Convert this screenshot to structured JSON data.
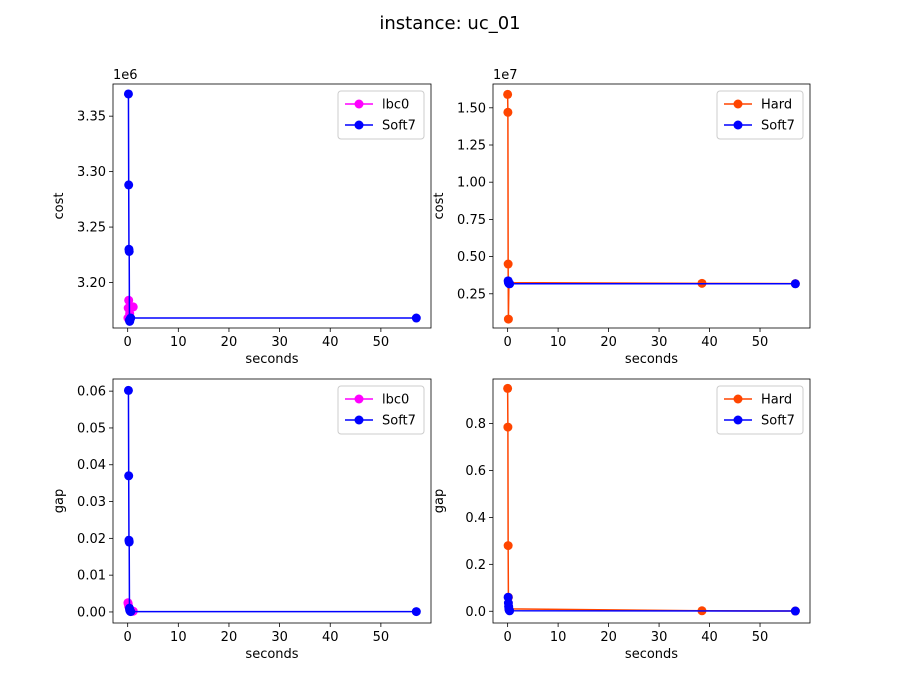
{
  "suptitle": "instance: uc_01",
  "chart_data": [
    {
      "type": "line",
      "xlabel": "seconds",
      "ylabel": "cost",
      "offset_text": "1e6",
      "xlim": [
        -2.9,
        59.9
      ],
      "ylim": [
        3.159,
        3.379
      ],
      "x_ticks": [
        0,
        10,
        20,
        30,
        40,
        50
      ],
      "y_ticks": [
        3.2,
        3.25,
        3.3,
        3.35
      ],
      "y_tick_labels": [
        "3.20",
        "3.25",
        "3.30",
        "3.35"
      ],
      "legend_position": "upper right",
      "series": [
        {
          "name": "lbc0",
          "color": "#ff00ff",
          "x": [
            0.05,
            0.1,
            0.2,
            0.4,
            1.1
          ],
          "y": [
            3.168,
            3.177,
            3.184,
            3.172,
            3.178
          ]
        },
        {
          "name": "Soft7",
          "color": "#0000ff",
          "x": [
            0.15,
            0.2,
            0.25,
            0.3,
            0.35,
            0.4,
            0.5,
            0.6,
            57.0
          ],
          "y": [
            3.37,
            3.288,
            3.23,
            3.228,
            3.166,
            3.165,
            3.167,
            3.168,
            3.168
          ]
        }
      ]
    },
    {
      "type": "line",
      "xlabel": "seconds",
      "ylabel": "cost",
      "offset_text": "1e7",
      "xlim": [
        -2.9,
        59.9
      ],
      "ylim": [
        0.02,
        1.66
      ],
      "x_ticks": [
        0,
        10,
        20,
        30,
        40,
        50
      ],
      "y_ticks": [
        0.25,
        0.5,
        0.75,
        1.0,
        1.25,
        1.5
      ],
      "y_tick_labels": [
        "0.25",
        "0.50",
        "0.75",
        "1.00",
        "1.25",
        "1.50"
      ],
      "legend_position": "upper right",
      "series": [
        {
          "name": "Hard",
          "color": "#ff4500",
          "x": [
            0.0,
            0.05,
            0.1,
            0.15,
            0.25,
            38.5,
            57.0
          ],
          "y": [
            1.59,
            1.47,
            0.45,
            0.08,
            0.325,
            0.32,
            0.318
          ]
        },
        {
          "name": "Soft7",
          "color": "#0000ff",
          "x": [
            0.1,
            0.15,
            0.2,
            0.25,
            0.3,
            0.4,
            57.0
          ],
          "y": [
            0.337,
            0.326,
            0.323,
            0.322,
            0.318,
            0.317,
            0.317
          ]
        }
      ]
    },
    {
      "type": "line",
      "xlabel": "seconds",
      "ylabel": "gap",
      "offset_text": "",
      "xlim": [
        -2.9,
        59.9
      ],
      "ylim": [
        -0.003,
        0.0633
      ],
      "x_ticks": [
        0,
        10,
        20,
        30,
        40,
        50
      ],
      "y_ticks": [
        0.0,
        0.01,
        0.02,
        0.03,
        0.04,
        0.05,
        0.06
      ],
      "y_tick_labels": [
        "0.00",
        "0.01",
        "0.02",
        "0.03",
        "0.04",
        "0.05",
        "0.06"
      ],
      "legend_position": "upper right",
      "series": [
        {
          "name": "lbc0",
          "color": "#ff00ff",
          "x": [
            0.05,
            0.1,
            0.2,
            0.4,
            1.1
          ],
          "y": [
            0.0025,
            0.0022,
            0.0015,
            0.0008,
            0.0002
          ]
        },
        {
          "name": "Soft7",
          "color": "#0000ff",
          "x": [
            0.15,
            0.2,
            0.25,
            0.3,
            0.35,
            0.4,
            0.5,
            0.6,
            57.0
          ],
          "y": [
            0.0602,
            0.037,
            0.0195,
            0.019,
            0.001,
            0.0005,
            0.0002,
            0.0001,
            0.0001
          ]
        }
      ]
    },
    {
      "type": "line",
      "xlabel": "seconds",
      "ylabel": "gap",
      "offset_text": "",
      "xlim": [
        -2.9,
        59.9
      ],
      "ylim": [
        -0.05,
        0.99
      ],
      "x_ticks": [
        0,
        10,
        20,
        30,
        40,
        50
      ],
      "y_ticks": [
        0.0,
        0.2,
        0.4,
        0.6,
        0.8
      ],
      "y_tick_labels": [
        "0.0",
        "0.2",
        "0.4",
        "0.6",
        "0.8"
      ],
      "legend_position": "upper right",
      "series": [
        {
          "name": "Hard",
          "color": "#ff4500",
          "x": [
            0.0,
            0.05,
            0.1,
            0.15,
            0.25,
            38.5,
            57.0
          ],
          "y": [
            0.95,
            0.785,
            0.28,
            0.06,
            0.01,
            0.002,
            0.001
          ]
        },
        {
          "name": "Soft7",
          "color": "#0000ff",
          "x": [
            0.1,
            0.15,
            0.2,
            0.25,
            0.3,
            0.4,
            57.0
          ],
          "y": [
            0.06,
            0.035,
            0.02,
            0.01,
            0.005,
            0.002,
            0.001
          ]
        }
      ]
    }
  ]
}
